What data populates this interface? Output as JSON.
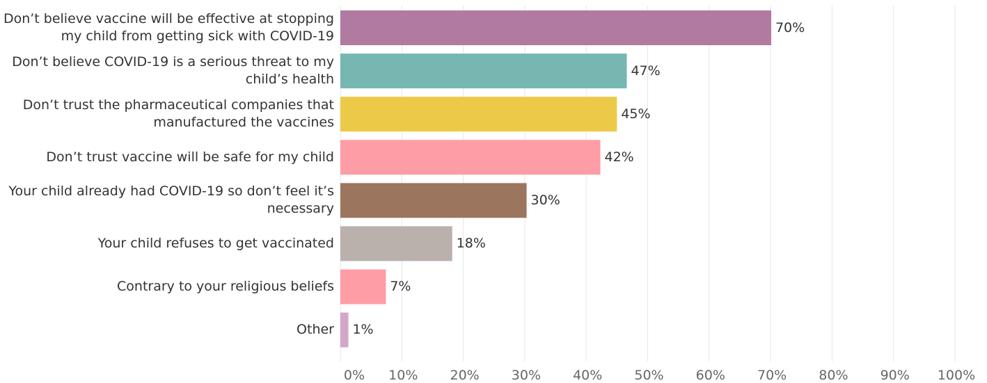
{
  "chart_data": {
    "type": "bar",
    "orientation": "horizontal",
    "categories": [
      "Don’t believe vaccine will be effective at stopping\nmy child from getting sick with COVID-19",
      "Don’t believe COVID-19 is a serious threat to my\nchild’s health",
      "Don’t trust the pharmaceutical companies that\nmanufactured the vaccines",
      "Don’t trust vaccine will be safe for my child",
      "Your child already had COVID-19 so don’t feel it’s\nnecessary",
      "Your child refuses to get vaccinated",
      "Contrary to your religious beliefs",
      "Other"
    ],
    "values": [
      70.1,
      46.6,
      45.0,
      42.3,
      30.3,
      18.2,
      7.4,
      1.3
    ],
    "value_labels": [
      "70%",
      "47%",
      "45%",
      "42%",
      "30%",
      "18%",
      "7%",
      "1%"
    ],
    "colors": [
      "#b07aa1",
      "#76b7b2",
      "#edc948",
      "#ff9da7",
      "#9c755f",
      "#bab0ac",
      "#ff9da7",
      "#d4a6c8"
    ],
    "xlim": [
      0,
      100
    ],
    "x_ticks": [
      0,
      10,
      20,
      30,
      40,
      50,
      60,
      70,
      80,
      90,
      100
    ],
    "x_tick_labels": [
      "0%",
      "10%",
      "20%",
      "30%",
      "40%",
      "50%",
      "60%",
      "70%",
      "80%",
      "90%",
      "100%"
    ],
    "grid": true,
    "title": "",
    "xlabel": "",
    "ylabel": ""
  }
}
